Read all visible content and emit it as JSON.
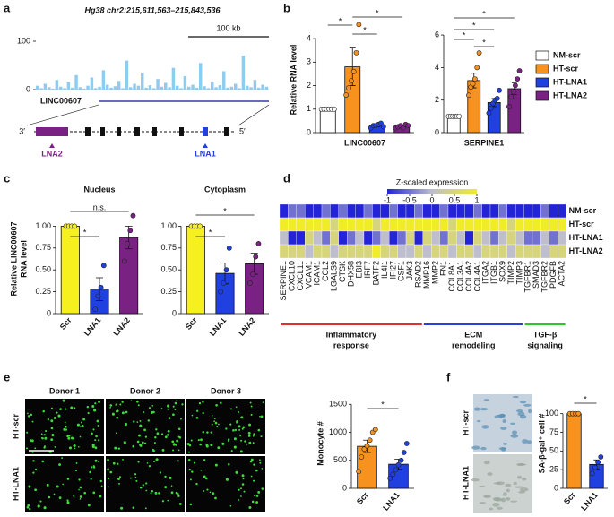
{
  "panel_labels": [
    "a",
    "b",
    "c",
    "d",
    "e",
    "f"
  ],
  "track": {
    "coordinate": "Hg38 chr2:215,611,563–215,843,536",
    "scale_label": "100 kb",
    "ylim": [
      0,
      100
    ],
    "yticks": [
      0,
      100
    ],
    "coverage": [
      8,
      3,
      12,
      5,
      2,
      20,
      6,
      3,
      15,
      4,
      30,
      5,
      2,
      8,
      25,
      3,
      6,
      40,
      10,
      4,
      7,
      18,
      3,
      60,
      5,
      12,
      8,
      35,
      4,
      9,
      3,
      22,
      6,
      14,
      5,
      45,
      8,
      3,
      28,
      6,
      10,
      4,
      55,
      7,
      3,
      16,
      5,
      9,
      38,
      4,
      6,
      12,
      3,
      70,
      8,
      5,
      20,
      4,
      10,
      6
    ],
    "gene": "LINC00607",
    "strand_labels": [
      "3′",
      "5′"
    ],
    "lna_labels": [
      "LNA2",
      "LNA1"
    ]
  },
  "chart_data": [
    {
      "type": "bar",
      "xlabel": "LINC00607",
      "ylabel": "Relative RNA level",
      "values": [
        1,
        2.8,
        0.3,
        0.25
      ],
      "errors": [
        0,
        0.8,
        0.05,
        0.05
      ],
      "points": [
        [
          1,
          1,
          1,
          1,
          1,
          1
        ],
        [
          1.6,
          1.9,
          2.2,
          2.6,
          3.4,
          4.6
        ],
        [
          0.2,
          0.3,
          0.3,
          0.35,
          0.4,
          0.25
        ],
        [
          0.2,
          0.25,
          0.3,
          0.2,
          0.35,
          0.3
        ]
      ],
      "ylim": [
        0,
        4.5
      ],
      "yticks": [
        0,
        1,
        2,
        3,
        4
      ],
      "annotations": [
        "*",
        "*",
        "*"
      ]
    },
    {
      "type": "bar",
      "xlabel": "SERPINE1",
      "values": [
        1,
        3.2,
        1.85,
        2.7
      ],
      "errors": [
        0,
        0.45,
        0.25,
        0.35
      ],
      "points": [
        [
          1,
          1,
          1,
          1,
          1,
          1
        ],
        [
          2.3,
          2.8,
          3.0,
          3.3,
          4.0,
          4.9
        ],
        [
          1.2,
          1.5,
          1.8,
          2.0,
          2.1,
          2.6
        ],
        [
          1.6,
          2.2,
          2.5,
          2.9,
          3.3,
          3.8
        ]
      ],
      "ylim": [
        0,
        6.5
      ],
      "yticks": [
        0,
        2,
        4,
        6
      ],
      "annotations": [
        "*",
        "*",
        "*",
        "*"
      ],
      "legend": {
        "names": [
          "NM-scr",
          "HT-scr",
          "HT-LNA1",
          "HT-LNA2"
        ],
        "colors": [
          "#ffffff",
          "#f7921e",
          "#2140e0",
          "#7a2283"
        ]
      }
    },
    {
      "type": "bar",
      "title": "Nucleus",
      "ylabel": [
        "Relative LINC00607",
        "RNA level"
      ],
      "categories": [
        "Scr",
        "LNA1",
        "LNA2"
      ],
      "colors": [
        "#f5f01e",
        "#2140e0",
        "#7a2283"
      ],
      "values": [
        1,
        0.28,
        0.87
      ],
      "errors": [
        0,
        0.13,
        0.13
      ],
      "points": [
        [
          1,
          1,
          1,
          1
        ],
        [
          0.05,
          0.2,
          0.3,
          0.55
        ],
        [
          0.6,
          0.8,
          0.95,
          1.12
        ]
      ],
      "ylim": [
        0,
        1.25
      ],
      "yticks": [
        0,
        0.25,
        {
          "value": 0.5,
          "label": "0.50"
        },
        0.75,
        {
          "value": 1,
          "label": "1.00"
        }
      ],
      "annotations": [
        "*",
        "n.s."
      ]
    },
    {
      "type": "bar",
      "title": "Cytoplasm",
      "categories": [
        "Scr",
        "LNA1",
        "LNA2"
      ],
      "colors": [
        "#f5f01e",
        "#2140e0",
        "#7a2283"
      ],
      "values": [
        1,
        0.46,
        0.57
      ],
      "errors": [
        0,
        0.12,
        0.12
      ],
      "points": [
        [
          1,
          1,
          1,
          1
        ],
        [
          0.25,
          0.35,
          0.5,
          0.75
        ],
        [
          0.35,
          0.45,
          0.65,
          0.8
        ]
      ],
      "ylim": [
        0,
        1.25
      ],
      "yticks": [
        0,
        0.25,
        {
          "value": 0.5,
          "label": "0.50"
        },
        0.75,
        {
          "value": 1,
          "label": "1.00"
        }
      ],
      "annotations": [
        "*",
        "*"
      ]
    },
    {
      "type": "bar",
      "ylabel": "Monocyte #",
      "categories": [
        "Scr",
        "LNA1"
      ],
      "colors": [
        "#f7921e",
        "#2140e0"
      ],
      "values": [
        750,
        430
      ],
      "errors": [
        110,
        90
      ],
      "points": [
        [
          300,
          560,
          700,
          760,
          860,
          1000,
          1050
        ],
        [
          180,
          250,
          330,
          420,
          500,
          640,
          800
        ]
      ],
      "ylim": [
        0,
        1600
      ],
      "yticks": [
        0,
        500,
        1000,
        1500
      ],
      "annotations": [
        "*"
      ]
    },
    {
      "type": "bar",
      "ylabel": "SA-β-gal⁺ cell #",
      "categories": [
        "Scr",
        "LNA1"
      ],
      "colors": [
        "#f7921e",
        "#2140e0"
      ],
      "values": [
        100,
        32
      ],
      "errors": [
        0,
        6
      ],
      "points": [
        [
          100,
          100,
          100,
          100
        ],
        [
          20,
          28,
          35,
          42
        ]
      ],
      "ylim": [
        0,
        120
      ],
      "yticks": [
        0,
        25,
        50,
        75,
        100
      ],
      "annotations": [
        "*"
      ]
    }
  ],
  "heatmap": {
    "colorbar_title": "Z-scaled expression",
    "colorbar_range": [
      -1,
      1
    ],
    "colorbar_ticks": [
      -1,
      -0.5,
      0,
      0.5,
      1
    ],
    "rows": [
      "NM-scr",
      "HT-scr",
      "HT-LNA1",
      "HT-LNA2"
    ],
    "groups": [
      {
        "label": [
          "Inflammatory",
          "response"
        ],
        "color": "#e0302a",
        "genes": [
          "SERPINE1",
          "CXCL10",
          "CXCL11",
          "VCAM1",
          "ICAM1",
          "CCL2",
          "LGALS9",
          "CTSK",
          "DHX58",
          "EBI3",
          "IRF7",
          "BATF2",
          "IL4I1",
          "IFI27",
          "CSF1",
          "JAK3",
          "RSAD2"
        ],
        "values": [
          [
            -1,
            -0.5,
            -0.5,
            -1,
            -1,
            -0.5,
            -1,
            -0.5,
            -1,
            -1,
            -0.5,
            -1,
            -1,
            -0.5,
            -1,
            -1,
            -0.5
          ],
          [
            1,
            1,
            1,
            1,
            1,
            1,
            0.5,
            1,
            1,
            1,
            1,
            0.5,
            1,
            1,
            1,
            1,
            1
          ],
          [
            0,
            -1,
            -1,
            0.5,
            0,
            -0.5,
            0.5,
            -1,
            -0.5,
            0,
            -1,
            -0.5,
            0,
            -1,
            -0.5,
            0.5,
            -1
          ],
          [
            0.5,
            0.5,
            0.5,
            0,
            0.5,
            0.5,
            0,
            0.5,
            0.5,
            0.5,
            0.5,
            1,
            0.5,
            0.5,
            0,
            0,
            0.5
          ]
        ]
      },
      {
        "label": [
          "ECM",
          "remodeling"
        ],
        "color": "#2a3fd8",
        "genes": [
          "MMP16",
          "MMP2",
          "FN1",
          "COL8A1",
          "COL3A1",
          "COL4A2",
          "COL4A1",
          "ITGA2",
          "ITGB1",
          "SOX9",
          "TIMP2",
          "TIMP3"
        ],
        "values": [
          [
            -1,
            -1,
            -0.5,
            -1,
            -1,
            -1,
            -0.5,
            -1,
            -1,
            -0.5,
            -1,
            -1
          ],
          [
            1,
            1,
            1,
            0.5,
            1,
            1,
            1,
            1,
            1,
            1,
            0.5,
            1
          ],
          [
            0.5,
            0,
            -0.5,
            0.5,
            0,
            -1,
            0.5,
            0,
            -0.5,
            0,
            0.5,
            0
          ],
          [
            0,
            0.5,
            0.5,
            0,
            0.5,
            0.5,
            0,
            0.5,
            0.5,
            0.5,
            0,
            0.5
          ]
        ]
      },
      {
        "label": [
          "TGF-β",
          "signaling"
        ],
        "color": "#2fc42f",
        "genes": [
          "TGFBR1",
          "SMAD3",
          "TGFBR2",
          "PDGFB",
          "ACTA2"
        ],
        "values": [
          [
            -1,
            -1,
            -0.5,
            -1,
            -1
          ],
          [
            1,
            1,
            1,
            1,
            1
          ],
          [
            -0.5,
            -0.5,
            0,
            -0.5,
            0
          ],
          [
            0.5,
            0.5,
            0,
            0.5,
            0.5
          ]
        ]
      }
    ]
  },
  "micrographs": {
    "donors": [
      "Donor 1",
      "Donor 2",
      "Donor 3"
    ],
    "rows": [
      "HT-scr",
      "HT-LNA1"
    ]
  },
  "staining": {
    "rows": [
      "HT-scr",
      "HT-LNA1"
    ]
  }
}
